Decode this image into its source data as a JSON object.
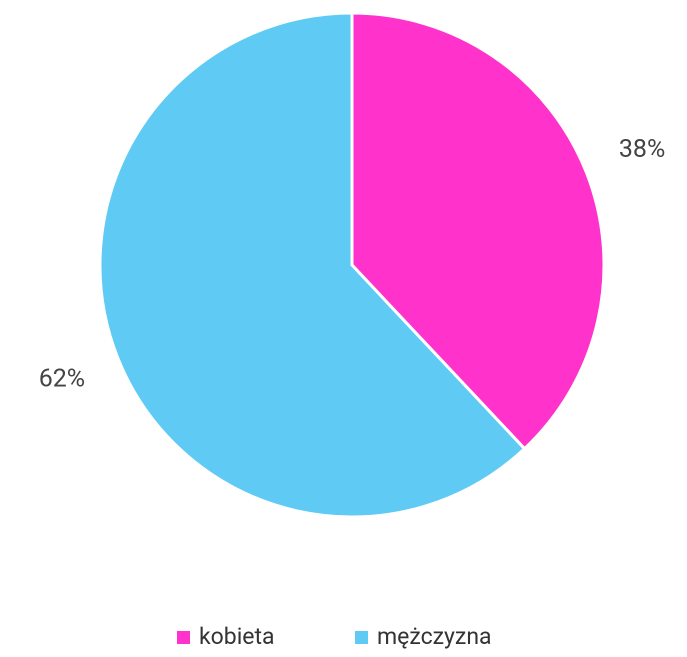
{
  "chart_data": {
    "type": "pie",
    "categories": [
      "kobieta",
      "mężczyzna"
    ],
    "values": [
      38,
      62
    ],
    "value_labels": [
      "38%",
      "62%"
    ],
    "colors": [
      "#ff33cc",
      "#5fcaf4"
    ],
    "legend": "bottom"
  }
}
